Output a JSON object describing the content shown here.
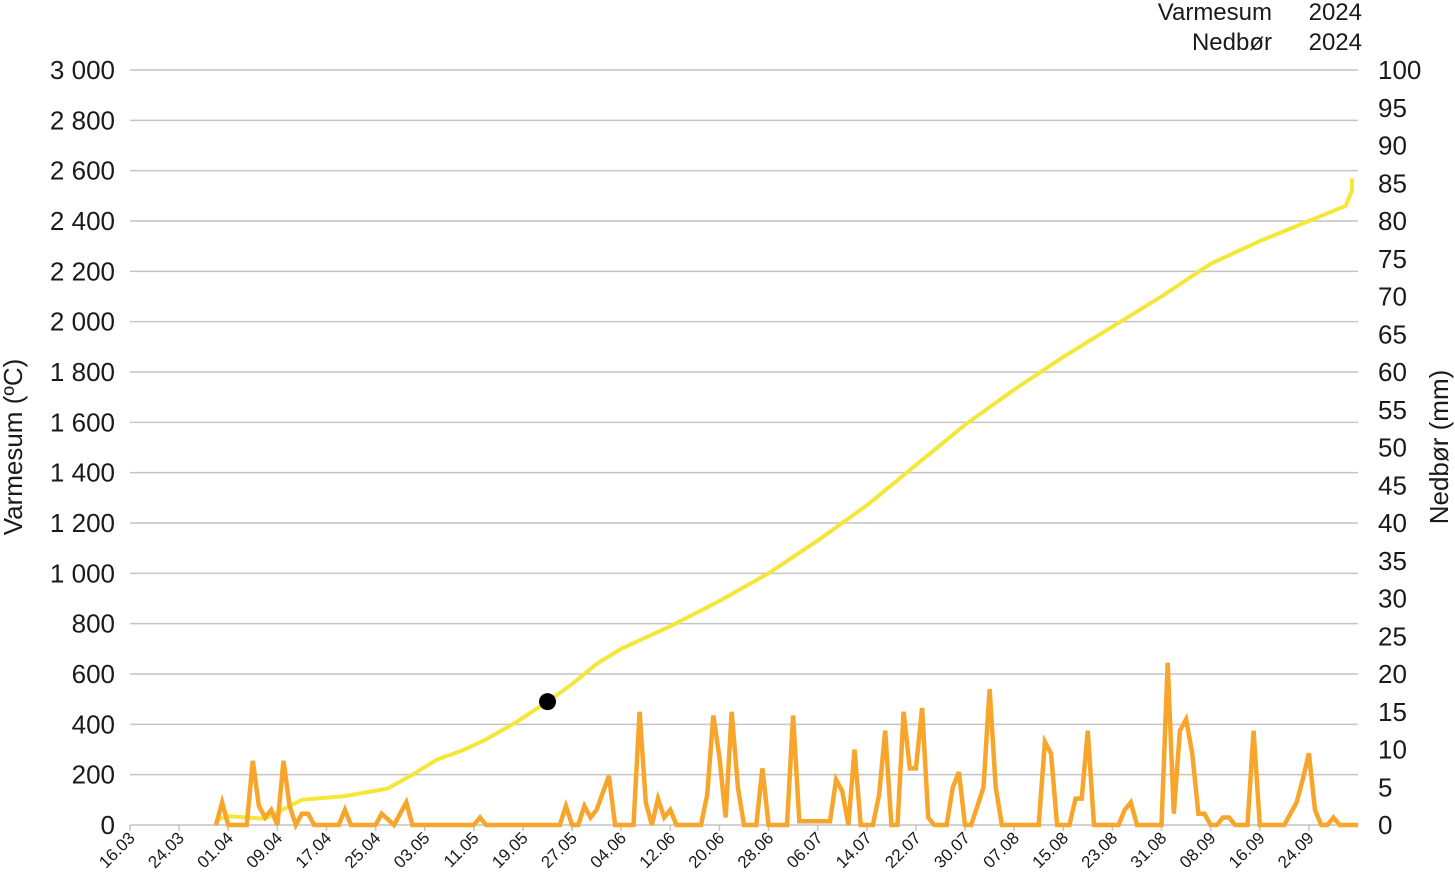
{
  "chart_data": {
    "type": "line",
    "legend_position": "top-right",
    "grid": true,
    "legend": [
      {
        "label": "Varmesum",
        "year": "2024",
        "color": "#f5e63a"
      },
      {
        "label": "Nedbør",
        "year": "2024",
        "color": "#f7a52b"
      }
    ],
    "y_left": {
      "label": "Varmesum (ºC)",
      "range": [
        0,
        3000
      ],
      "ticks": [
        0,
        200,
        400,
        600,
        800,
        1000,
        1200,
        1400,
        1600,
        1800,
        2000,
        2200,
        2400,
        2600,
        2800,
        3000
      ],
      "tick_labels": [
        "0",
        "200",
        "400",
        "600",
        "800",
        "1 000",
        "1 200",
        "1 400",
        "1 600",
        "1 800",
        "2 000",
        "2 200",
        "2 400",
        "2 600",
        "2 800",
        "3 000"
      ]
    },
    "y_right": {
      "label": "Nedbør (mm)",
      "range": [
        0,
        100
      ],
      "ticks": [
        0,
        5,
        10,
        15,
        20,
        25,
        30,
        35,
        40,
        45,
        50,
        55,
        60,
        65,
        70,
        75,
        80,
        85,
        90,
        95,
        100
      ],
      "tick_labels": [
        "0",
        "5",
        "10",
        "15",
        "20",
        "25",
        "30",
        "35",
        "40",
        "45",
        "50",
        "55",
        "60",
        "65",
        "70",
        "75",
        "80",
        "85",
        "90",
        "95",
        "100"
      ]
    },
    "x_labels": [
      "16.03",
      "24.03",
      "01.04",
      "09.04",
      "17.04",
      "25.04",
      "03.05",
      "11.05",
      "19.05",
      "27.05",
      "04.06",
      "12.06",
      "20.06",
      "28.06",
      "06.07",
      "14.07",
      "22.07",
      "30.07",
      "07.08",
      "15.08",
      "23.08",
      "31.08",
      "08.09",
      "16.09",
      "24.09"
    ],
    "x_range": [
      "16.03",
      "02.10"
    ],
    "series": [
      {
        "name": "Varmesum",
        "axis": "left",
        "color": "#f5e63a",
        "points": [
          [
            "30.03",
            20
          ],
          [
            "01.04",
            35
          ],
          [
            "07.04",
            25
          ],
          [
            "09.04",
            50
          ],
          [
            "13.04",
            100
          ],
          [
            "20.04",
            115
          ],
          [
            "27.04",
            145
          ],
          [
            "01.05",
            200
          ],
          [
            "05.05",
            260
          ],
          [
            "09.05",
            295
          ],
          [
            "13.05",
            340
          ],
          [
            "18.05",
            410
          ],
          [
            "23.05",
            490
          ],
          [
            "27.05",
            560
          ],
          [
            "31.05",
            640
          ],
          [
            "04.06",
            700
          ],
          [
            "12.06",
            790
          ],
          [
            "20.06",
            890
          ],
          [
            "28.06",
            1000
          ],
          [
            "06.07",
            1130
          ],
          [
            "14.07",
            1270
          ],
          [
            "22.07",
            1430
          ],
          [
            "30.07",
            1590
          ],
          [
            "07.08",
            1730
          ],
          [
            "15.08",
            1860
          ],
          [
            "23.08",
            1980
          ],
          [
            "31.08",
            2100
          ],
          [
            "08.09",
            2230
          ],
          [
            "16.09",
            2320
          ],
          [
            "24.09",
            2400
          ],
          [
            "30.09",
            2460
          ],
          [
            "01.10",
            2520
          ],
          [
            "01.10",
            2570
          ]
        ],
        "marker": {
          "date": "23.05",
          "value": 490
        }
      },
      {
        "name": "Nedbør",
        "axis": "right",
        "color": "#f7a52b",
        "points": [
          [
            "30.03",
            0
          ],
          [
            "31.03",
            3
          ],
          [
            "01.04",
            0
          ],
          [
            "04.04",
            0
          ],
          [
            "05.04",
            8.5
          ],
          [
            "06.04",
            2.5
          ],
          [
            "07.04",
            1
          ],
          [
            "08.04",
            2
          ],
          [
            "09.04",
            0
          ],
          [
            "10.04",
            8.5
          ],
          [
            "11.04",
            2.5
          ],
          [
            "12.04",
            0
          ],
          [
            "13.04",
            1.5
          ],
          [
            "14.04",
            1.5
          ],
          [
            "15.04",
            0
          ],
          [
            "19.04",
            0
          ],
          [
            "20.04",
            2
          ],
          [
            "21.04",
            0
          ],
          [
            "25.04",
            0
          ],
          [
            "26.04",
            1.5
          ],
          [
            "28.04",
            0
          ],
          [
            "30.04",
            3
          ],
          [
            "01.05",
            0
          ],
          [
            "11.05",
            0
          ],
          [
            "12.05",
            1
          ],
          [
            "13.05",
            0
          ],
          [
            "25.05",
            0
          ],
          [
            "26.05",
            2.5
          ],
          [
            "27.05",
            0
          ],
          [
            "28.05",
            0
          ],
          [
            "29.05",
            2.5
          ],
          [
            "30.05",
            1
          ],
          [
            "31.05",
            2
          ],
          [
            "02.06",
            6.5
          ],
          [
            "03.06",
            0
          ],
          [
            "06.06",
            0
          ],
          [
            "07.06",
            15
          ],
          [
            "08.06",
            3
          ],
          [
            "09.06",
            0
          ],
          [
            "10.06",
            3.5
          ],
          [
            "11.06",
            1
          ],
          [
            "12.06",
            2
          ],
          [
            "13.06",
            0
          ],
          [
            "17.06",
            0
          ],
          [
            "18.06",
            4
          ],
          [
            "19.06",
            14.5
          ],
          [
            "20.06",
            9
          ],
          [
            "21.06",
            1
          ],
          [
            "22.06",
            15
          ],
          [
            "23.06",
            5
          ],
          [
            "24.06",
            0
          ],
          [
            "26.06",
            0
          ],
          [
            "27.06",
            7.5
          ],
          [
            "28.06",
            0
          ],
          [
            "01.07",
            0
          ],
          [
            "02.07",
            14.5
          ],
          [
            "03.07",
            0.5
          ],
          [
            "08.07",
            0.5
          ],
          [
            "09.07",
            6
          ],
          [
            "10.07",
            4.5
          ],
          [
            "11.07",
            0
          ],
          [
            "12.07",
            10
          ],
          [
            "13.07",
            0
          ],
          [
            "15.07",
            0
          ],
          [
            "16.07",
            4
          ],
          [
            "17.07",
            12.5
          ],
          [
            "18.07",
            0
          ],
          [
            "19.07",
            0
          ],
          [
            "20.07",
            15
          ],
          [
            "21.07",
            7.5
          ],
          [
            "22.07",
            7.5
          ],
          [
            "23.07",
            15.5
          ],
          [
            "24.07",
            1
          ],
          [
            "25.07",
            0
          ],
          [
            "27.07",
            0
          ],
          [
            "28.07",
            5
          ],
          [
            "29.07",
            7
          ],
          [
            "30.07",
            0
          ],
          [
            "31.07",
            0
          ],
          [
            "02.08",
            5
          ],
          [
            "03.08",
            18
          ],
          [
            "04.08",
            5
          ],
          [
            "05.08",
            0
          ],
          [
            "11.08",
            0
          ],
          [
            "12.08",
            11
          ],
          [
            "13.08",
            9.5
          ],
          [
            "14.08",
            0
          ],
          [
            "16.08",
            0
          ],
          [
            "17.08",
            3.5
          ],
          [
            "18.08",
            3.5
          ],
          [
            "19.08",
            12.5
          ],
          [
            "20.08",
            0
          ],
          [
            "24.08",
            0
          ],
          [
            "25.08",
            2
          ],
          [
            "26.08",
            3
          ],
          [
            "27.08",
            0
          ],
          [
            "31.08",
            0
          ],
          [
            "01.09",
            21.5
          ],
          [
            "02.09",
            1.5
          ],
          [
            "03.09",
            12.5
          ],
          [
            "04.09",
            14
          ],
          [
            "05.09",
            9.5
          ],
          [
            "06.09",
            1.5
          ],
          [
            "07.09",
            1.5
          ],
          [
            "08.09",
            0
          ],
          [
            "09.09",
            0
          ],
          [
            "10.09",
            1
          ],
          [
            "11.09",
            1
          ],
          [
            "12.09",
            0
          ],
          [
            "14.09",
            0
          ],
          [
            "15.09",
            12.5
          ],
          [
            "16.09",
            0
          ],
          [
            "20.09",
            0
          ],
          [
            "22.09",
            3
          ],
          [
            "23.09",
            6
          ],
          [
            "24.09",
            9.5
          ],
          [
            "25.09",
            2
          ],
          [
            "26.09",
            0
          ],
          [
            "27.09",
            0
          ],
          [
            "28.09",
            1
          ],
          [
            "29.09",
            0
          ],
          [
            "02.10",
            0
          ]
        ]
      }
    ]
  }
}
